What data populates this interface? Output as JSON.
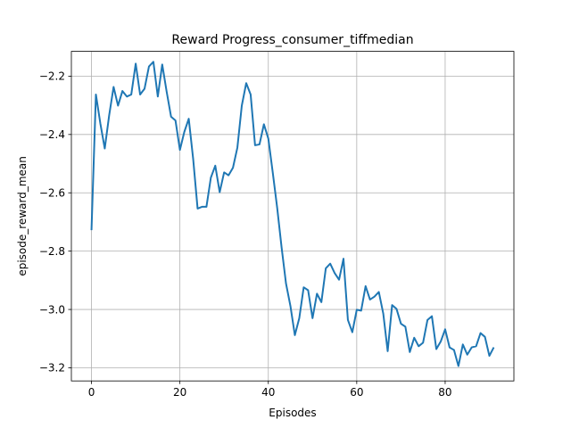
{
  "chart_data": {
    "type": "line",
    "title": "Reward Progress_consumer_tiffmedian",
    "xlabel": "Episodes",
    "ylabel": "episode_reward_mean",
    "xlim": [
      -4.55,
      95.55
    ],
    "ylim": [
      -3.245,
      -2.115
    ],
    "grid": true,
    "x_ticks": [
      0,
      20,
      40,
      60,
      80
    ],
    "y_ticks": [
      -3.2,
      -3.0,
      -2.8,
      -2.6,
      -2.4,
      -2.2
    ],
    "x_tick_labels": [
      "0",
      "20",
      "40",
      "60",
      "80"
    ],
    "y_tick_labels": [
      "−3.2",
      "−3.0",
      "−2.8",
      "−2.6",
      "−2.4",
      "−2.2"
    ],
    "color": "#1f77b4",
    "series": [
      {
        "x": [
          0,
          1,
          2,
          3,
          4,
          5,
          6,
          7,
          8,
          9,
          10,
          11,
          12,
          13,
          14,
          15,
          16,
          17,
          18,
          19,
          20,
          21,
          22,
          23,
          24,
          25,
          26,
          27,
          28,
          29,
          30,
          31,
          32,
          33,
          34,
          35,
          36,
          37,
          38,
          39,
          40,
          41,
          42,
          43,
          44,
          45,
          46,
          47,
          48,
          49,
          50,
          51,
          52,
          53,
          54,
          55,
          56,
          57,
          58,
          59,
          60,
          61,
          62,
          63,
          64,
          65,
          66,
          67,
          68,
          69,
          70,
          71,
          72,
          73,
          74,
          75,
          76,
          77,
          78,
          79,
          80,
          81,
          82,
          83,
          84,
          85,
          86,
          87,
          88,
          89,
          90,
          91
        ],
        "values": [
          -2.728,
          -2.263,
          -2.362,
          -2.448,
          -2.334,
          -2.237,
          -2.301,
          -2.251,
          -2.27,
          -2.263,
          -2.157,
          -2.263,
          -2.243,
          -2.167,
          -2.151,
          -2.27,
          -2.16,
          -2.253,
          -2.339,
          -2.352,
          -2.453,
          -2.391,
          -2.346,
          -2.484,
          -2.654,
          -2.648,
          -2.648,
          -2.548,
          -2.507,
          -2.598,
          -2.53,
          -2.54,
          -2.514,
          -2.445,
          -2.301,
          -2.224,
          -2.263,
          -2.437,
          -2.434,
          -2.365,
          -2.414,
          -2.53,
          -2.651,
          -2.787,
          -2.911,
          -2.988,
          -3.088,
          -3.03,
          -2.924,
          -2.934,
          -3.03,
          -2.946,
          -2.975,
          -2.859,
          -2.843,
          -2.875,
          -2.898,
          -2.826,
          -3.036,
          -3.078,
          -3.001,
          -3.004,
          -2.92,
          -2.966,
          -2.956,
          -2.94,
          -3.014,
          -3.143,
          -2.985,
          -2.998,
          -3.049,
          -3.059,
          -3.146,
          -3.097,
          -3.126,
          -3.114,
          -3.036,
          -3.023,
          -3.136,
          -3.11,
          -3.068,
          -3.13,
          -3.139,
          -3.194,
          -3.12,
          -3.155,
          -3.13,
          -3.126,
          -3.081,
          -3.094,
          -3.159,
          -3.13
        ]
      }
    ]
  }
}
